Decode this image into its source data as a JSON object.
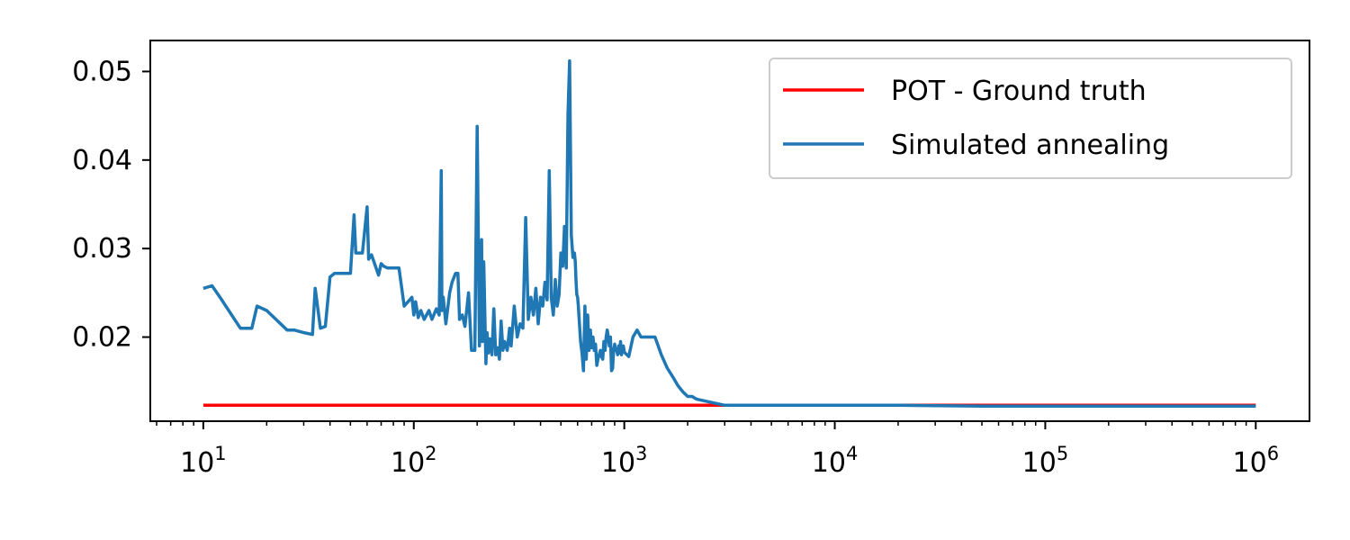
{
  "chart_data": {
    "type": "line",
    "title": "",
    "xlabel": "",
    "ylabel": "",
    "x_scale": "log",
    "xlim": [
      5.6,
      1800000
    ],
    "ylim": [
      0.0105,
      0.0535
    ],
    "x_ticks": [
      {
        "value": 10,
        "base": "10",
        "exp": "1"
      },
      {
        "value": 100,
        "base": "10",
        "exp": "2"
      },
      {
        "value": 1000,
        "base": "10",
        "exp": "3"
      },
      {
        "value": 10000,
        "base": "10",
        "exp": "4"
      },
      {
        "value": 100000,
        "base": "10",
        "exp": "5"
      },
      {
        "value": 1000000,
        "base": "10",
        "exp": "6"
      }
    ],
    "y_ticks": [
      {
        "value": 0.02,
        "label": "0.02"
      },
      {
        "value": 0.03,
        "label": "0.03"
      },
      {
        "value": 0.04,
        "label": "0.04"
      },
      {
        "value": 0.05,
        "label": "0.05"
      }
    ],
    "grid": false,
    "legend_position": "top-right",
    "series": [
      {
        "name": "POT - Ground truth",
        "color": "#ff0000",
        "x": [
          10,
          1000000
        ],
        "y": [
          0.0123,
          0.0123
        ]
      },
      {
        "name": "Simulated annealing",
        "color": "#1f77b4",
        "x": [
          10,
          11,
          12,
          15,
          17,
          18,
          20,
          25,
          27,
          30,
          33,
          34,
          36,
          38,
          40,
          42,
          45,
          50,
          52,
          53,
          57,
          60,
          61,
          63,
          68,
          70,
          72,
          75,
          80,
          85,
          90,
          98,
          100,
          102,
          105,
          108,
          112,
          118,
          122,
          128,
          132,
          135,
          136,
          138,
          142,
          148,
          152,
          158,
          162,
          165,
          170,
          175,
          182,
          188,
          195,
          200,
          205,
          210,
          212,
          215,
          220,
          223,
          226,
          230,
          235,
          240,
          245,
          250,
          255,
          260,
          265,
          270,
          278,
          285,
          290,
          300,
          310,
          320,
          330,
          340,
          350,
          360,
          370,
          380,
          390,
          400,
          410,
          420,
          430,
          440,
          450,
          460,
          470,
          480,
          490,
          500,
          510,
          520,
          530,
          540,
          550,
          560,
          570,
          580,
          585,
          590,
          595,
          600,
          605,
          610,
          620,
          630,
          640,
          650,
          660,
          670,
          680,
          690,
          700,
          710,
          720,
          730,
          740,
          750,
          760,
          770,
          780,
          790,
          800,
          810,
          820,
          830,
          840,
          850,
          860,
          870,
          880,
          890,
          900,
          910,
          920,
          930,
          940,
          950,
          960,
          970,
          980,
          990,
          1000,
          1050,
          1100,
          1150,
          1200,
          1300,
          1400,
          1500,
          1600,
          1700,
          1800,
          1900,
          2000,
          2100,
          2200,
          3000,
          5000,
          8000,
          12500,
          20000,
          50000,
          100000,
          300000,
          1000000
        ],
        "y": [
          0.0255,
          0.0258,
          0.0245,
          0.021,
          0.021,
          0.0235,
          0.023,
          0.0208,
          0.0208,
          0.0205,
          0.0203,
          0.0255,
          0.021,
          0.0212,
          0.0268,
          0.0272,
          0.0272,
          0.0272,
          0.0338,
          0.0295,
          0.0295,
          0.0347,
          0.0288,
          0.0293,
          0.027,
          0.0283,
          0.028,
          0.0278,
          0.0278,
          0.0278,
          0.0235,
          0.0245,
          0.0225,
          0.024,
          0.0222,
          0.023,
          0.022,
          0.023,
          0.022,
          0.0232,
          0.0225,
          0.0388,
          0.023,
          0.0245,
          0.0215,
          0.025,
          0.0262,
          0.0272,
          0.0272,
          0.022,
          0.0225,
          0.0212,
          0.025,
          0.0185,
          0.0185,
          0.0438,
          0.019,
          0.031,
          0.0195,
          0.0285,
          0.017,
          0.0205,
          0.0182,
          0.0198,
          0.018,
          0.0232,
          0.018,
          0.0188,
          0.0175,
          0.0218,
          0.0185,
          0.0195,
          0.0185,
          0.021,
          0.019,
          0.0235,
          0.02,
          0.0215,
          0.021,
          0.0335,
          0.022,
          0.0245,
          0.0225,
          0.0255,
          0.0215,
          0.0245,
          0.0235,
          0.0262,
          0.0242,
          0.0388,
          0.0245,
          0.0225,
          0.0265,
          0.0235,
          0.0248,
          0.0295,
          0.028,
          0.0325,
          0.0278,
          0.0452,
          0.0512,
          0.0315,
          0.029,
          0.0295,
          0.0285,
          0.0262,
          0.0248,
          0.0245,
          0.0235,
          0.0222,
          0.0195,
          0.0182,
          0.0162,
          0.0235,
          0.0175,
          0.0225,
          0.0185,
          0.0208,
          0.0188,
          0.02,
          0.0185,
          0.0192,
          0.0168,
          0.0175,
          0.018,
          0.0185,
          0.0178,
          0.0175,
          0.0195,
          0.0185,
          0.02,
          0.0208,
          0.02,
          0.019,
          0.02,
          0.0162,
          0.0165,
          0.0185,
          0.0192,
          0.0185,
          0.0185,
          0.018,
          0.019,
          0.0182,
          0.0195,
          0.018,
          0.0185,
          0.019,
          0.0183,
          0.0178,
          0.02,
          0.0208,
          0.02,
          0.02,
          0.02,
          0.018,
          0.0165,
          0.0155,
          0.0145,
          0.0138,
          0.0133,
          0.0133,
          0.013,
          0.0123,
          0.0123,
          0.0123,
          0.0123,
          0.0123,
          0.0122,
          0.0122,
          0.0122,
          0.0122
        ]
      }
    ]
  }
}
